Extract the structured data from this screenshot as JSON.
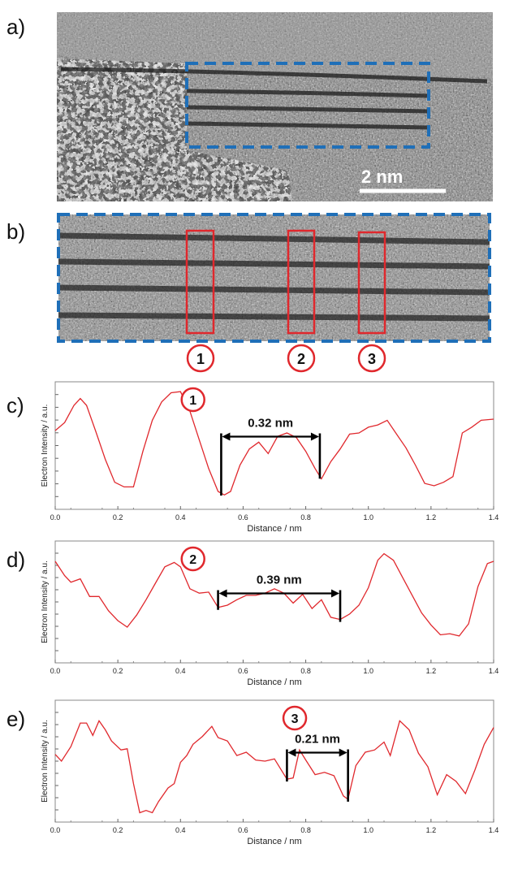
{
  "figure": {
    "panels": [
      {
        "letter": "a)"
      },
      {
        "letter": "b)"
      },
      {
        "letter": "c)"
      },
      {
        "letter": "d)"
      },
      {
        "letter": "e)"
      }
    ],
    "scale_bar_label": "2 nm",
    "region_markers": [
      "1",
      "2",
      "3"
    ],
    "colors": {
      "dashed_box": "#1f6fb8",
      "region_box": "#e0282d",
      "profile_line": "#e0282d",
      "measurement": "#000000"
    }
  },
  "chart_data": [
    {
      "type": "line",
      "panel": "c",
      "marker": "1",
      "xlabel": "Distance / nm",
      "ylabel": "Electron Intensity / a.u.",
      "xlim": [
        0.0,
        1.4
      ],
      "ylim": [
        0,
        1
      ],
      "xticks": [
        "0.0",
        "0.2",
        "0.4",
        "0.6",
        "0.8",
        "1.0",
        "1.2",
        "1.4"
      ],
      "annotation": {
        "label": "0.32 nm",
        "x_start": 0.53,
        "x_end": 0.845
      },
      "x": [
        0.0,
        0.03,
        0.06,
        0.08,
        0.1,
        0.13,
        0.16,
        0.19,
        0.22,
        0.25,
        0.28,
        0.31,
        0.34,
        0.37,
        0.4,
        0.43,
        0.46,
        0.49,
        0.52,
        0.54,
        0.56,
        0.59,
        0.62,
        0.65,
        0.68,
        0.71,
        0.74,
        0.77,
        0.8,
        0.83,
        0.85,
        0.88,
        0.91,
        0.94,
        0.97,
        1.0,
        1.03,
        1.06,
        1.09,
        1.12,
        1.15,
        1.18,
        1.21,
        1.24,
        1.27,
        1.3,
        1.33,
        1.36,
        1.4
      ],
      "y": [
        0.63,
        0.7,
        0.85,
        0.91,
        0.85,
        0.62,
        0.38,
        0.18,
        0.14,
        0.14,
        0.45,
        0.72,
        0.88,
        0.96,
        0.97,
        0.8,
        0.55,
        0.3,
        0.1,
        0.07,
        0.1,
        0.33,
        0.47,
        0.53,
        0.43,
        0.58,
        0.61,
        0.57,
        0.45,
        0.3,
        0.21,
        0.36,
        0.47,
        0.6,
        0.61,
        0.66,
        0.68,
        0.72,
        0.6,
        0.48,
        0.33,
        0.17,
        0.15,
        0.18,
        0.23,
        0.61,
        0.66,
        0.72,
        0.73
      ]
    },
    {
      "type": "line",
      "panel": "d",
      "marker": "2",
      "xlabel": "Distance / nm",
      "ylabel": "Electron Intensity / a.u.",
      "xlim": [
        0.0,
        1.4
      ],
      "ylim": [
        0,
        1
      ],
      "xticks": [
        "0.0",
        "0.2",
        "0.4",
        "0.6",
        "0.8",
        "1.0",
        "1.2",
        "1.4"
      ],
      "annotation": {
        "label": "0.39 nm",
        "x_start": 0.52,
        "x_end": 0.91
      },
      "x": [
        0.0,
        0.03,
        0.05,
        0.08,
        0.11,
        0.14,
        0.17,
        0.2,
        0.23,
        0.26,
        0.29,
        0.32,
        0.35,
        0.38,
        0.4,
        0.43,
        0.46,
        0.49,
        0.52,
        0.55,
        0.58,
        0.61,
        0.64,
        0.67,
        0.7,
        0.73,
        0.76,
        0.79,
        0.82,
        0.85,
        0.88,
        0.91,
        0.94,
        0.97,
        1.0,
        1.03,
        1.05,
        1.08,
        1.11,
        1.14,
        1.17,
        1.2,
        1.23,
        1.26,
        1.29,
        1.32,
        1.35,
        1.38,
        1.4
      ],
      "y": [
        0.87,
        0.74,
        0.68,
        0.71,
        0.55,
        0.55,
        0.42,
        0.33,
        0.27,
        0.38,
        0.52,
        0.67,
        0.82,
        0.86,
        0.82,
        0.62,
        0.58,
        0.59,
        0.45,
        0.47,
        0.52,
        0.56,
        0.56,
        0.58,
        0.62,
        0.58,
        0.49,
        0.57,
        0.44,
        0.52,
        0.36,
        0.34,
        0.39,
        0.47,
        0.63,
        0.88,
        0.94,
        0.88,
        0.72,
        0.56,
        0.4,
        0.29,
        0.2,
        0.21,
        0.19,
        0.3,
        0.64,
        0.85,
        0.87
      ]
    },
    {
      "type": "line",
      "panel": "e",
      "marker": "3",
      "xlabel": "Distance / nm",
      "ylabel": "Electron Intensity / a.u.",
      "xlim": [
        0.0,
        1.4
      ],
      "ylim": [
        0,
        1
      ],
      "xticks": [
        "0.0",
        "0.2",
        "0.4",
        "0.6",
        "0.8",
        "1.0",
        "1.2",
        "1.4"
      ],
      "annotation": {
        "label": "0.21 nm",
        "x_start": 0.74,
        "x_end": 0.935
      },
      "x": [
        0.0,
        0.02,
        0.05,
        0.08,
        0.1,
        0.12,
        0.14,
        0.16,
        0.18,
        0.21,
        0.23,
        0.25,
        0.27,
        0.29,
        0.31,
        0.33,
        0.36,
        0.38,
        0.4,
        0.42,
        0.44,
        0.47,
        0.5,
        0.52,
        0.55,
        0.58,
        0.61,
        0.64,
        0.67,
        0.7,
        0.72,
        0.74,
        0.76,
        0.78,
        0.8,
        0.83,
        0.86,
        0.89,
        0.92,
        0.935,
        0.96,
        0.99,
        1.02,
        1.05,
        1.07,
        1.1,
        1.13,
        1.16,
        1.19,
        1.22,
        1.25,
        1.28,
        1.31,
        1.34,
        1.37,
        1.4
      ],
      "y": [
        0.56,
        0.5,
        0.63,
        0.84,
        0.84,
        0.73,
        0.86,
        0.78,
        0.68,
        0.6,
        0.61,
        0.3,
        0.04,
        0.06,
        0.04,
        0.14,
        0.26,
        0.3,
        0.49,
        0.55,
        0.65,
        0.72,
        0.81,
        0.71,
        0.68,
        0.55,
        0.58,
        0.51,
        0.5,
        0.52,
        0.43,
        0.34,
        0.35,
        0.6,
        0.51,
        0.38,
        0.4,
        0.37,
        0.19,
        0.16,
        0.46,
        0.58,
        0.6,
        0.67,
        0.55,
        0.86,
        0.78,
        0.57,
        0.45,
        0.2,
        0.38,
        0.32,
        0.21,
        0.42,
        0.65,
        0.8
      ]
    }
  ]
}
